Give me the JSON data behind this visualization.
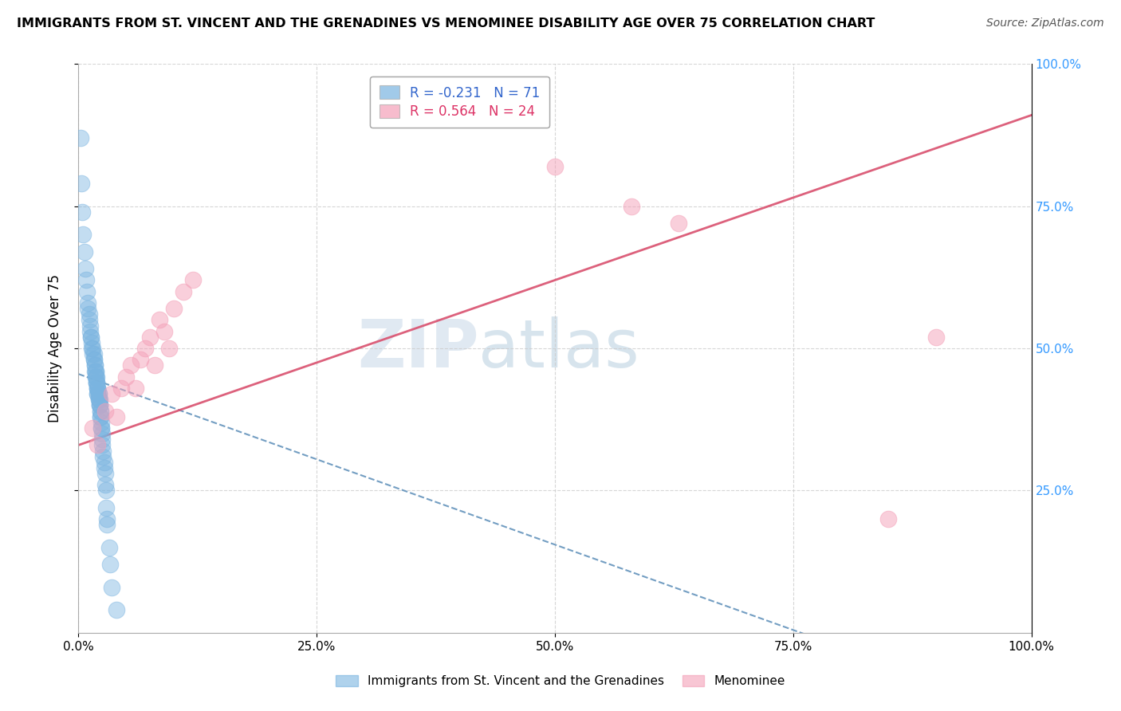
{
  "title": "IMMIGRANTS FROM ST. VINCENT AND THE GRENADINES VS MENOMINEE DISABILITY AGE OVER 75 CORRELATION CHART",
  "source": "Source: ZipAtlas.com",
  "ylabel": "Disability Age Over 75",
  "legend_blue_r": "R = -0.231",
  "legend_blue_n": "N = 71",
  "legend_pink_r": "R = 0.564",
  "legend_pink_n": "N = 24",
  "legend_blue_label": "Immigrants from St. Vincent and the Grenadines",
  "legend_pink_label": "Menominee",
  "watermark_zip": "ZIP",
  "watermark_atlas": "atlas",
  "blue_color": "#7ab4e0",
  "pink_color": "#f4a0b8",
  "blue_line_color": "#5b8db8",
  "pink_line_color": "#d9506e",
  "xlim": [
    0,
    100
  ],
  "ylim": [
    0,
    100
  ],
  "x_ticks": [
    0,
    25,
    50,
    75,
    100
  ],
  "x_tick_labels": [
    "0.0%",
    "25.0%",
    "50.0%",
    "75.0%",
    "100.0%"
  ],
  "y_ticks": [
    25,
    50,
    75,
    100
  ],
  "y_tick_labels": [
    "25.0%",
    "50.0%",
    "75.0%",
    "100.0%"
  ],
  "blue_scatter_x": [
    0.2,
    0.3,
    0.4,
    0.5,
    0.6,
    0.7,
    0.8,
    0.9,
    1.0,
    1.0,
    1.1,
    1.1,
    1.2,
    1.2,
    1.3,
    1.3,
    1.4,
    1.4,
    1.5,
    1.5,
    1.6,
    1.6,
    1.6,
    1.7,
    1.7,
    1.7,
    1.8,
    1.8,
    1.8,
    1.8,
    1.9,
    1.9,
    1.9,
    1.9,
    2.0,
    2.0,
    2.0,
    2.0,
    2.0,
    2.1,
    2.1,
    2.1,
    2.1,
    2.2,
    2.2,
    2.2,
    2.2,
    2.3,
    2.3,
    2.3,
    2.3,
    2.4,
    2.4,
    2.4,
    2.5,
    2.5,
    2.5,
    2.6,
    2.6,
    2.7,
    2.7,
    2.8,
    2.8,
    2.9,
    2.9,
    3.0,
    3.0,
    3.2,
    3.3,
    3.5,
    4.0
  ],
  "blue_scatter_y": [
    87,
    79,
    74,
    70,
    67,
    64,
    62,
    60,
    58,
    57,
    56,
    55,
    54,
    53,
    52,
    52,
    51,
    50,
    50,
    49,
    49,
    48,
    48,
    47,
    47,
    46,
    46,
    46,
    45,
    45,
    45,
    44,
    44,
    44,
    43,
    43,
    43,
    42,
    42,
    42,
    42,
    41,
    41,
    41,
    40,
    40,
    40,
    39,
    39,
    38,
    38,
    37,
    36,
    36,
    35,
    34,
    33,
    32,
    31,
    30,
    29,
    28,
    26,
    25,
    22,
    20,
    19,
    15,
    12,
    8,
    4
  ],
  "pink_scatter_x": [
    1.5,
    2.0,
    2.8,
    3.5,
    4.0,
    4.5,
    5.0,
    5.5,
    6.0,
    6.5,
    7.0,
    7.5,
    8.0,
    8.5,
    9.0,
    9.5,
    10.0,
    11.0,
    12.0,
    50.0,
    58.0,
    63.0,
    85.0,
    90.0
  ],
  "pink_scatter_y": [
    36,
    33,
    39,
    42,
    38,
    43,
    45,
    47,
    43,
    48,
    50,
    52,
    47,
    55,
    53,
    50,
    57,
    60,
    62,
    82,
    75,
    72,
    20,
    52
  ],
  "blue_trend_y0": 45.5,
  "blue_trend_slope": -0.6,
  "pink_trend_y0": 33.0,
  "pink_trend_slope": 0.58
}
